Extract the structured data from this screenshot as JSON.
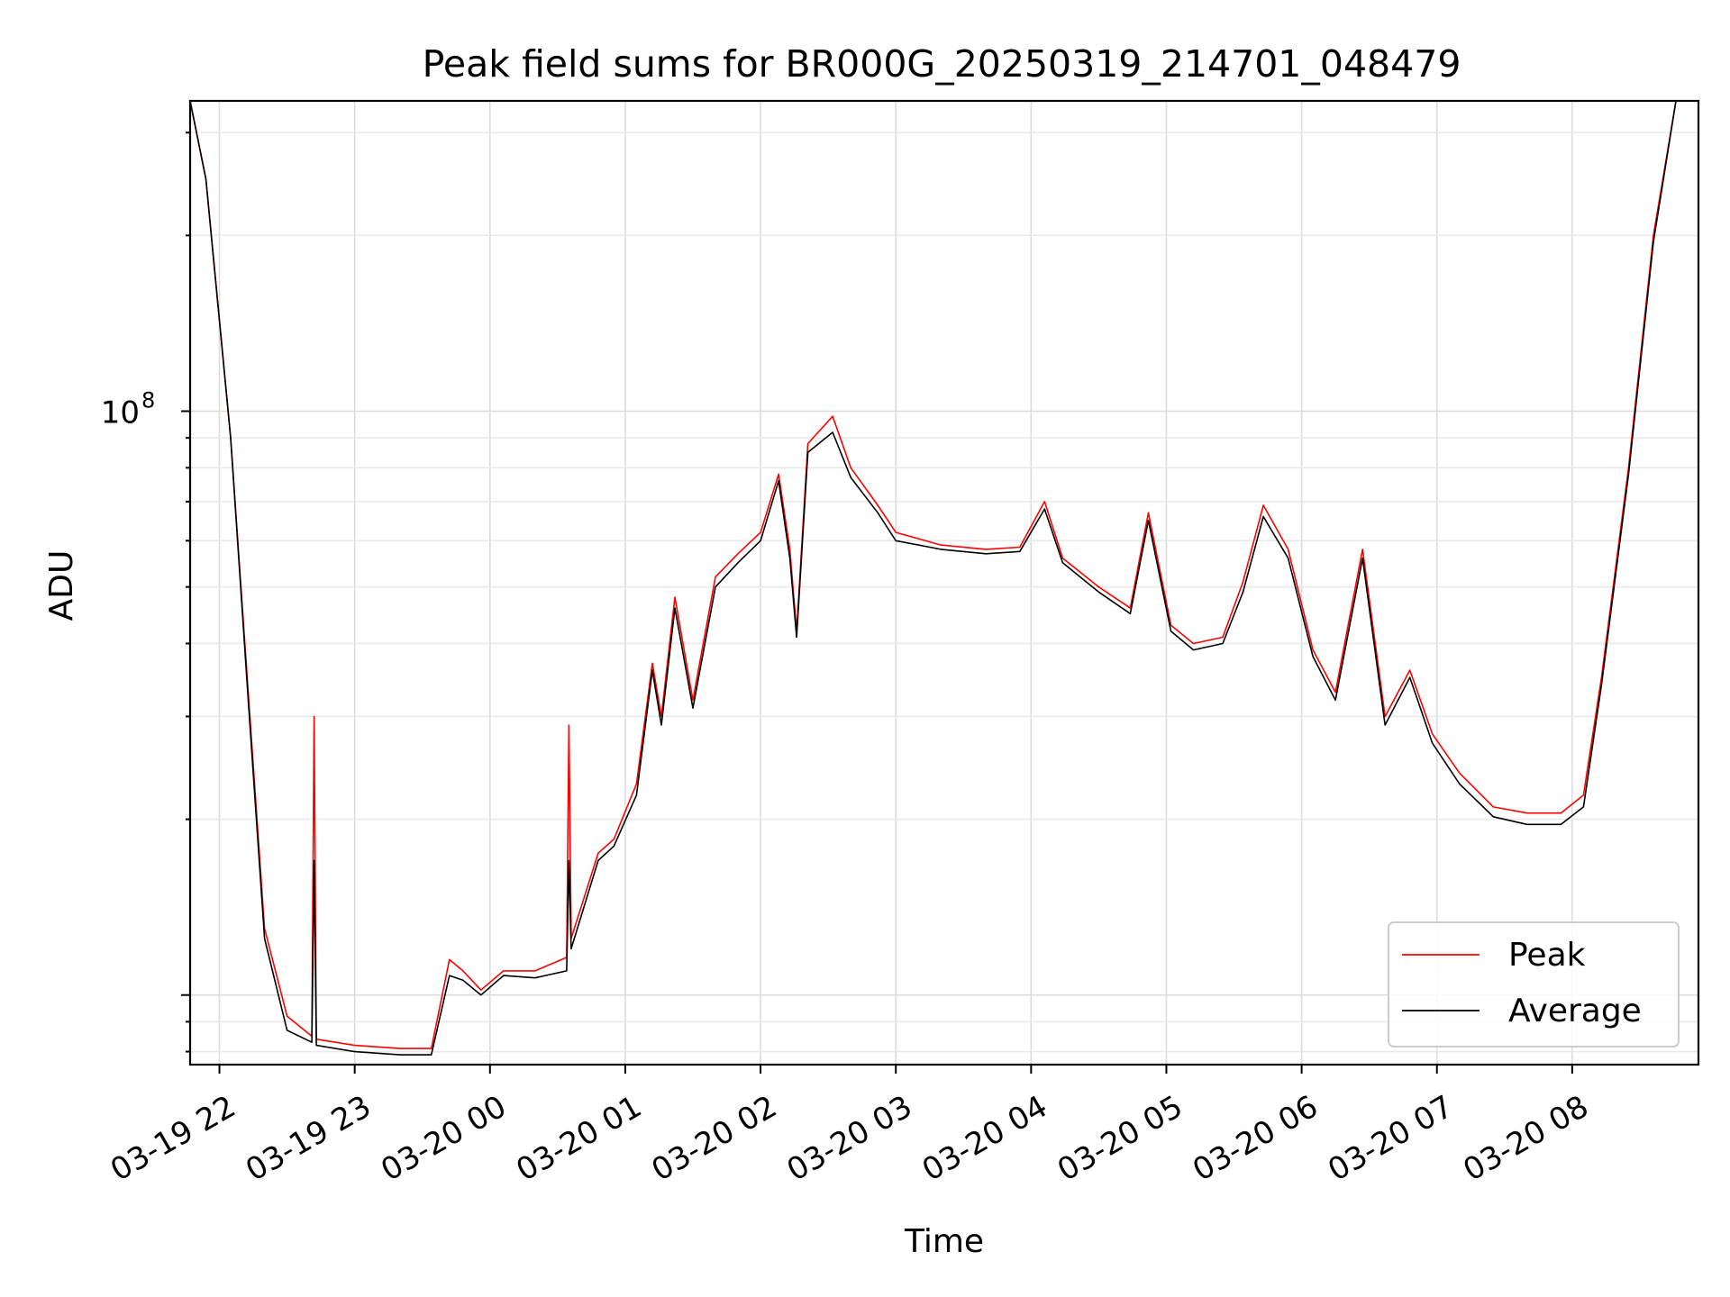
{
  "chart_data": {
    "type": "line",
    "title": "Peak field sums for BR000G_20250319_214701_048479",
    "xlabel": "Time",
    "ylabel": "ADU",
    "y_scale": "log",
    "ylim": [
      7600000,
      340000000
    ],
    "xlim": [
      "2025-03-19 21:47",
      "2025-03-20 08:56"
    ],
    "grid": true,
    "legend_position": "lower-right",
    "x_tick_labels": [
      "03-19 22",
      "03-19 23",
      "03-20 00",
      "03-20 01",
      "03-20 02",
      "03-20 03",
      "03-20 04",
      "03-20 05",
      "03-20 06",
      "03-20 07",
      "03-20 08"
    ],
    "y_tick_labels": [
      {
        "base": "10",
        "exp": "8"
      }
    ],
    "series": [
      {
        "name": "Peak",
        "color": "#ff0000",
        "points": [
          [
            "2025-03-19 21:47",
            340000000
          ],
          [
            "2025-03-19 21:54",
            250000000
          ],
          [
            "2025-03-19 22:05",
            90000000
          ],
          [
            "2025-03-19 22:13",
            32000000
          ],
          [
            "2025-03-19 22:20",
            13000000
          ],
          [
            "2025-03-19 22:30",
            9200000
          ],
          [
            "2025-03-19 22:41",
            8500000
          ],
          [
            "2025-03-19 22:42",
            30000000
          ],
          [
            "2025-03-19 22:43",
            8400000
          ],
          [
            "2025-03-19 23:00",
            8200000
          ],
          [
            "2025-03-19 23:20",
            8100000
          ],
          [
            "2025-03-19 23:34",
            8100000
          ],
          [
            "2025-03-19 23:42",
            11500000
          ],
          [
            "2025-03-19 23:48",
            11000000
          ],
          [
            "2025-03-19 23:56",
            10200000
          ],
          [
            "2025-03-20 00:06",
            11000000
          ],
          [
            "2025-03-20 00:20",
            11000000
          ],
          [
            "2025-03-20 00:34",
            11600000
          ],
          [
            "2025-03-20 00:35",
            29000000
          ],
          [
            "2025-03-20 00:36",
            12500000
          ],
          [
            "2025-03-20 00:48",
            17500000
          ],
          [
            "2025-03-20 00:55",
            18500000
          ],
          [
            "2025-03-20 01:05",
            23000000
          ],
          [
            "2025-03-20 01:12",
            37000000
          ],
          [
            "2025-03-20 01:16",
            30000000
          ],
          [
            "2025-03-20 01:22",
            48000000
          ],
          [
            "2025-03-20 01:30",
            32000000
          ],
          [
            "2025-03-20 01:40",
            52000000
          ],
          [
            "2025-03-20 01:50",
            57000000
          ],
          [
            "2025-03-20 02:00",
            62000000
          ],
          [
            "2025-03-20 02:08",
            78000000
          ],
          [
            "2025-03-20 02:13",
            58000000
          ],
          [
            "2025-03-20 02:16",
            42000000
          ],
          [
            "2025-03-20 02:21",
            88000000
          ],
          [
            "2025-03-20 02:32",
            98000000
          ],
          [
            "2025-03-20 02:40",
            80000000
          ],
          [
            "2025-03-20 02:52",
            69000000
          ],
          [
            "2025-03-20 03:00",
            62000000
          ],
          [
            "2025-03-20 03:20",
            59000000
          ],
          [
            "2025-03-20 03:40",
            58000000
          ],
          [
            "2025-03-20 03:55",
            58500000
          ],
          [
            "2025-03-20 04:06",
            70000000
          ],
          [
            "2025-03-20 04:14",
            56000000
          ],
          [
            "2025-03-20 04:30",
            50000000
          ],
          [
            "2025-03-20 04:44",
            46000000
          ],
          [
            "2025-03-20 04:52",
            67000000
          ],
          [
            "2025-03-20 05:02",
            43000000
          ],
          [
            "2025-03-20 05:12",
            40000000
          ],
          [
            "2025-03-20 05:25",
            41000000
          ],
          [
            "2025-03-20 05:34",
            51000000
          ],
          [
            "2025-03-20 05:43",
            69000000
          ],
          [
            "2025-03-20 05:54",
            58000000
          ],
          [
            "2025-03-20 06:05",
            39000000
          ],
          [
            "2025-03-20 06:15",
            33000000
          ],
          [
            "2025-03-20 06:27",
            58000000
          ],
          [
            "2025-03-20 06:37",
            30000000
          ],
          [
            "2025-03-20 06:48",
            36000000
          ],
          [
            "2025-03-20 06:58",
            28000000
          ],
          [
            "2025-03-20 07:10",
            24000000
          ],
          [
            "2025-03-20 07:25",
            21000000
          ],
          [
            "2025-03-20 07:40",
            20500000
          ],
          [
            "2025-03-20 07:55",
            20500000
          ],
          [
            "2025-03-20 08:05",
            22000000
          ],
          [
            "2025-03-20 08:13",
            35000000
          ],
          [
            "2025-03-20 08:25",
            80000000
          ],
          [
            "2025-03-20 08:36",
            200000000
          ],
          [
            "2025-03-20 08:46",
            340000000
          ],
          [
            "2025-03-20 08:56",
            340000000
          ]
        ]
      },
      {
        "name": "Average",
        "color": "#000000",
        "points": [
          [
            "2025-03-19 21:47",
            340000000
          ],
          [
            "2025-03-19 21:54",
            250000000
          ],
          [
            "2025-03-19 22:05",
            90000000
          ],
          [
            "2025-03-19 22:13",
            31000000
          ],
          [
            "2025-03-19 22:20",
            12500000
          ],
          [
            "2025-03-19 22:30",
            8700000
          ],
          [
            "2025-03-19 22:41",
            8300000
          ],
          [
            "2025-03-19 22:42",
            17000000
          ],
          [
            "2025-03-19 22:43",
            8200000
          ],
          [
            "2025-03-19 23:00",
            8000000
          ],
          [
            "2025-03-19 23:20",
            7900000
          ],
          [
            "2025-03-19 23:34",
            7900000
          ],
          [
            "2025-03-19 23:42",
            10800000
          ],
          [
            "2025-03-19 23:48",
            10600000
          ],
          [
            "2025-03-19 23:56",
            10000000
          ],
          [
            "2025-03-20 00:06",
            10800000
          ],
          [
            "2025-03-20 00:20",
            10700000
          ],
          [
            "2025-03-20 00:34",
            11000000
          ],
          [
            "2025-03-20 00:35",
            17000000
          ],
          [
            "2025-03-20 00:36",
            12000000
          ],
          [
            "2025-03-20 00:48",
            17000000
          ],
          [
            "2025-03-20 00:55",
            18000000
          ],
          [
            "2025-03-20 01:05",
            22000000
          ],
          [
            "2025-03-20 01:12",
            36000000
          ],
          [
            "2025-03-20 01:16",
            29000000
          ],
          [
            "2025-03-20 01:22",
            46000000
          ],
          [
            "2025-03-20 01:30",
            31000000
          ],
          [
            "2025-03-20 01:40",
            50000000
          ],
          [
            "2025-03-20 01:50",
            55000000
          ],
          [
            "2025-03-20 02:00",
            60000000
          ],
          [
            "2025-03-20 02:08",
            76000000
          ],
          [
            "2025-03-20 02:13",
            56000000
          ],
          [
            "2025-03-20 02:16",
            41000000
          ],
          [
            "2025-03-20 02:21",
            85000000
          ],
          [
            "2025-03-20 02:32",
            92000000
          ],
          [
            "2025-03-20 02:40",
            77000000
          ],
          [
            "2025-03-20 02:52",
            67000000
          ],
          [
            "2025-03-20 03:00",
            60000000
          ],
          [
            "2025-03-20 03:20",
            58000000
          ],
          [
            "2025-03-20 03:40",
            57000000
          ],
          [
            "2025-03-20 03:55",
            57500000
          ],
          [
            "2025-03-20 04:06",
            68000000
          ],
          [
            "2025-03-20 04:14",
            55000000
          ],
          [
            "2025-03-20 04:30",
            49000000
          ],
          [
            "2025-03-20 04:44",
            45000000
          ],
          [
            "2025-03-20 04:52",
            65000000
          ],
          [
            "2025-03-20 05:02",
            42000000
          ],
          [
            "2025-03-20 05:12",
            39000000
          ],
          [
            "2025-03-20 05:25",
            40000000
          ],
          [
            "2025-03-20 05:34",
            49000000
          ],
          [
            "2025-03-20 05:43",
            66000000
          ],
          [
            "2025-03-20 05:54",
            56000000
          ],
          [
            "2025-03-20 06:05",
            38000000
          ],
          [
            "2025-03-20 06:15",
            32000000
          ],
          [
            "2025-03-20 06:27",
            56000000
          ],
          [
            "2025-03-20 06:37",
            29000000
          ],
          [
            "2025-03-20 06:48",
            35000000
          ],
          [
            "2025-03-20 06:58",
            27000000
          ],
          [
            "2025-03-20 07:10",
            23000000
          ],
          [
            "2025-03-20 07:25",
            20200000
          ],
          [
            "2025-03-20 07:40",
            19600000
          ],
          [
            "2025-03-20 07:55",
            19600000
          ],
          [
            "2025-03-20 08:05",
            21000000
          ],
          [
            "2025-03-20 08:13",
            34000000
          ],
          [
            "2025-03-20 08:25",
            78000000
          ],
          [
            "2025-03-20 08:36",
            195000000
          ],
          [
            "2025-03-20 08:46",
            340000000
          ],
          [
            "2025-03-20 08:56",
            340000000
          ]
        ]
      }
    ]
  }
}
